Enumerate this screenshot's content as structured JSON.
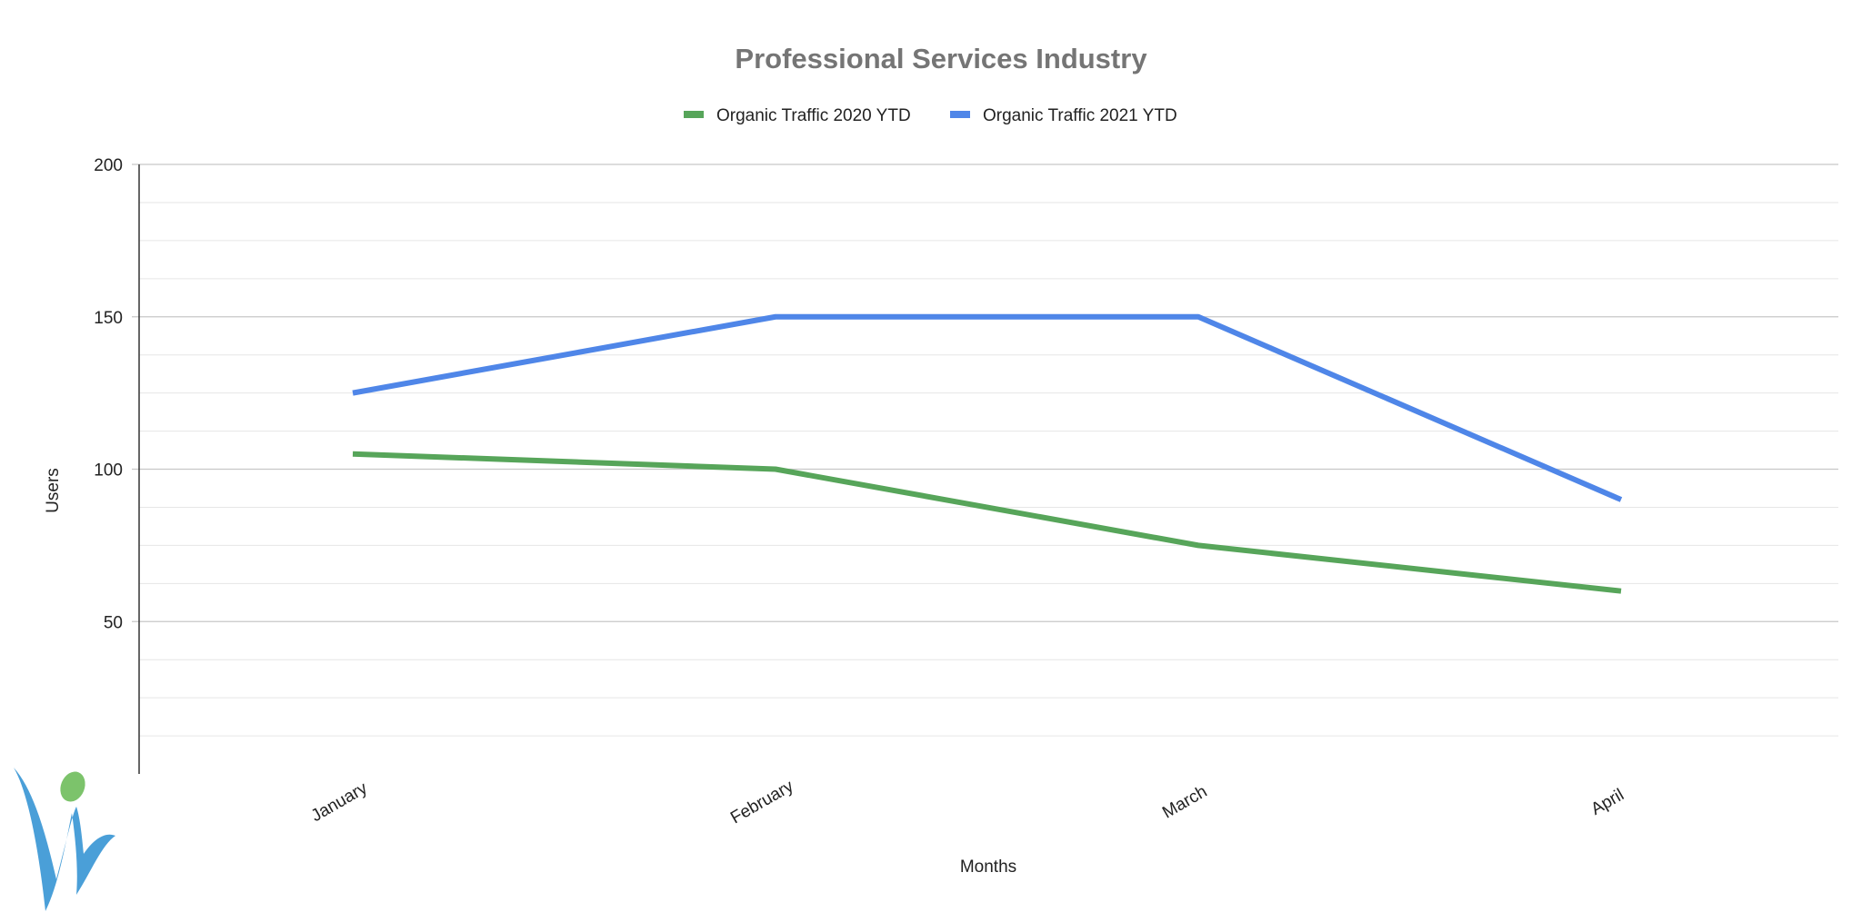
{
  "chart_data": {
    "type": "line",
    "title": "Professional Services Industry",
    "xlabel": "Months",
    "ylabel": "Users",
    "categories": [
      "January",
      "February",
      "March",
      "April"
    ],
    "ylim": [
      0,
      200
    ],
    "yticks": [
      50,
      100,
      150,
      200
    ],
    "grid": true,
    "legend_position": "top",
    "series": [
      {
        "name": "Organic Traffic 2020 YTD",
        "color": "#57a55a",
        "values": [
          105,
          100,
          75,
          60
        ]
      },
      {
        "name": "Organic Traffic 2021 YTD",
        "color": "#4f86e8",
        "values": [
          125,
          150,
          150,
          90
        ]
      }
    ]
  },
  "logo": {
    "name": "logo-icon",
    "colors": {
      "primary": "#4a9fd8",
      "accent": "#7cc36b"
    }
  }
}
